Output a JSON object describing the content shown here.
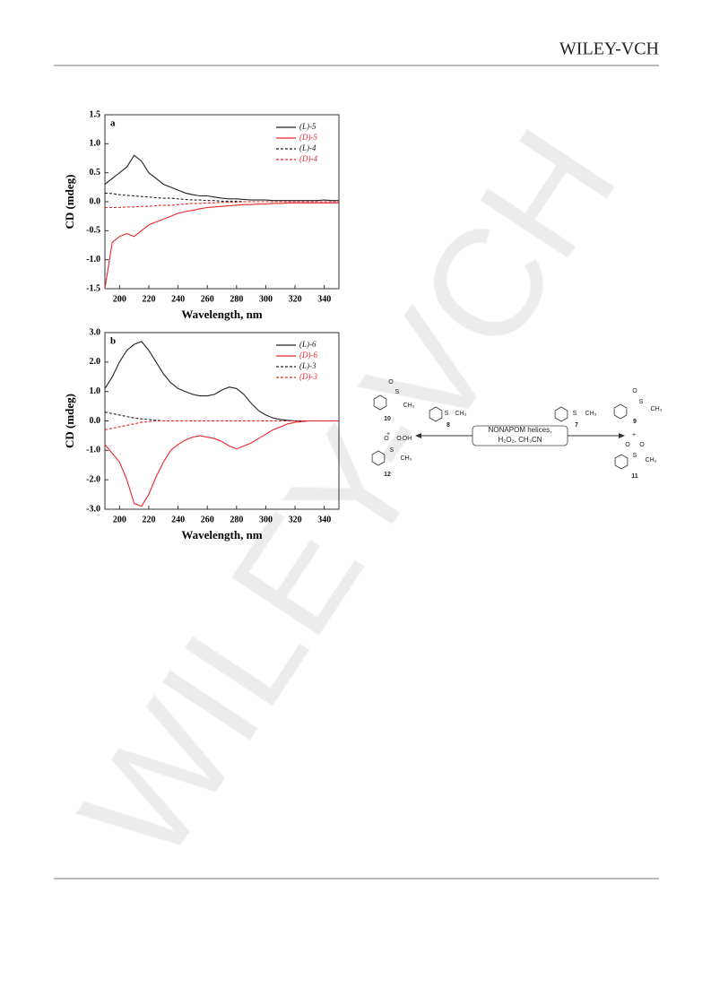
{
  "header": {
    "brand": "WILEY-VCH"
  },
  "watermark": "WILEY-VCH",
  "chart_data": [
    {
      "type": "line",
      "panel_label": "a",
      "xlabel": "Wavelength, nm",
      "ylabel": "CD (mdeg)",
      "x": [
        190,
        195,
        200,
        205,
        210,
        215,
        220,
        225,
        230,
        235,
        240,
        245,
        250,
        255,
        260,
        265,
        270,
        275,
        280,
        285,
        290,
        295,
        300,
        305,
        310,
        315,
        320,
        325,
        330,
        335,
        340,
        345,
        350
      ],
      "xlim": [
        190,
        350
      ],
      "xticks": [
        200,
        220,
        240,
        260,
        280,
        300,
        320,
        340
      ],
      "ylim": [
        -1.5,
        1.5
      ],
      "yticks": [
        -1.5,
        {
          "value": -1,
          "label": "-1.0"
        },
        -0.5,
        {
          "value": 0,
          "label": "0.0"
        },
        0.5,
        {
          "value": 1,
          "label": "1.0"
        },
        1.5
      ],
      "series": [
        {
          "name": "(L)-5",
          "color": "#222222",
          "style": "solid",
          "values": [
            0.3,
            0.4,
            0.5,
            0.6,
            0.8,
            0.7,
            0.5,
            0.4,
            0.3,
            0.25,
            0.2,
            0.15,
            0.12,
            0.1,
            0.1,
            0.08,
            0.06,
            0.05,
            0.05,
            0.04,
            0.03,
            0.03,
            0.03,
            0.02,
            0.02,
            0.02,
            0.02,
            0.02,
            0.02,
            0.02,
            0.03,
            0.02,
            0.02
          ]
        },
        {
          "name": "(D)-5",
          "color": "#e8262a",
          "style": "solid",
          "values": [
            -1.5,
            -0.7,
            -0.6,
            -0.55,
            -0.6,
            -0.5,
            -0.4,
            -0.35,
            -0.3,
            -0.25,
            -0.2,
            -0.17,
            -0.15,
            -0.12,
            -0.1,
            -0.09,
            -0.08,
            -0.07,
            -0.06,
            -0.05,
            -0.05,
            -0.04,
            -0.04,
            -0.03,
            -0.03,
            -0.02,
            -0.02,
            -0.02,
            -0.02,
            -0.02,
            -0.02,
            -0.02,
            -0.02
          ]
        },
        {
          "name": "(L)-4",
          "color": "#222222",
          "style": "dashed",
          "values": [
            0.15,
            0.14,
            0.12,
            0.11,
            0.1,
            0.09,
            0.08,
            0.07,
            0.06,
            0.06,
            0.05,
            0.04,
            0.03,
            0.03,
            0.02,
            0.02,
            0.01,
            0.01,
            0.01,
            0.0,
            0.0,
            0.0,
            0.0,
            0.0,
            0.0,
            0.0,
            0.0,
            0.0,
            0.0,
            0.0,
            0.0,
            0.0,
            0.0
          ]
        },
        {
          "name": "(D)-4",
          "color": "#e8262a",
          "style": "dashed",
          "values": [
            -0.1,
            -0.1,
            -0.1,
            -0.09,
            -0.09,
            -0.08,
            -0.08,
            -0.07,
            -0.06,
            -0.06,
            -0.05,
            -0.04,
            -0.03,
            -0.03,
            -0.02,
            -0.02,
            -0.01,
            -0.01,
            -0.01,
            0.0,
            0.0,
            0.0,
            0.0,
            0.0,
            0.0,
            0.0,
            0.0,
            0.0,
            0.0,
            0.0,
            0.0,
            0.0,
            0.0
          ]
        }
      ]
    },
    {
      "type": "line",
      "panel_label": "b",
      "xlabel": "Wavelength, nm",
      "ylabel": "CD (mdeg)",
      "x": [
        190,
        195,
        200,
        205,
        210,
        215,
        220,
        225,
        230,
        235,
        240,
        245,
        250,
        255,
        260,
        265,
        270,
        275,
        280,
        285,
        290,
        295,
        300,
        305,
        310,
        315,
        320,
        325,
        330,
        335,
        340,
        345,
        350
      ],
      "xlim": [
        190,
        350
      ],
      "xticks": [
        200,
        220,
        240,
        260,
        280,
        300,
        320,
        340
      ],
      "ylim": [
        -3,
        3
      ],
      "yticks": [
        {
          "value": -3,
          "label": "-3.0"
        },
        {
          "value": -2,
          "label": "-2.0"
        },
        {
          "value": -1,
          "label": "-1.0"
        },
        {
          "value": 0,
          "label": "0.0"
        },
        {
          "value": 1,
          "label": "1.0"
        },
        {
          "value": 2,
          "label": "2.0"
        },
        {
          "value": 3,
          "label": "3.0"
        }
      ],
      "series": [
        {
          "name": "(L)-6",
          "color": "#222222",
          "style": "solid",
          "values": [
            1.1,
            1.5,
            2.0,
            2.4,
            2.6,
            2.7,
            2.4,
            2.0,
            1.6,
            1.3,
            1.1,
            1.0,
            0.9,
            0.85,
            0.85,
            0.9,
            1.05,
            1.15,
            1.1,
            0.9,
            0.6,
            0.35,
            0.2,
            0.1,
            0.05,
            0.02,
            0.0,
            0.0,
            0.0,
            0.0,
            0.0,
            0.0,
            0.0
          ]
        },
        {
          "name": "(D)-6",
          "color": "#e8262a",
          "style": "solid",
          "values": [
            -0.8,
            -1.1,
            -1.4,
            -2.0,
            -2.8,
            -2.9,
            -2.5,
            -1.9,
            -1.4,
            -1.0,
            -0.8,
            -0.65,
            -0.55,
            -0.5,
            -0.55,
            -0.6,
            -0.7,
            -0.85,
            -0.95,
            -0.85,
            -0.75,
            -0.6,
            -0.45,
            -0.3,
            -0.2,
            -0.1,
            -0.05,
            -0.02,
            0.0,
            0.0,
            0.0,
            0.0,
            0.0
          ]
        },
        {
          "name": "(L)-3",
          "color": "#222222",
          "style": "dashed",
          "values": [
            0.3,
            0.25,
            0.2,
            0.15,
            0.1,
            0.07,
            0.05,
            0.02,
            0.0,
            0.0,
            0.0,
            0.0,
            0.0,
            0.0,
            0.0,
            0.0,
            0.0,
            0.0,
            0.0,
            0.0,
            0.0,
            0.0,
            0.0,
            0.0,
            0.0,
            0.0,
            0.0,
            0.0,
            0.0,
            0.0,
            0.0,
            0.0,
            0.0
          ]
        },
        {
          "name": "(D)-3",
          "color": "#e8262a",
          "style": "dashed",
          "values": [
            -0.3,
            -0.25,
            -0.2,
            -0.15,
            -0.1,
            -0.05,
            -0.02,
            0.0,
            0.0,
            0.0,
            0.0,
            0.0,
            0.0,
            0.0,
            0.0,
            0.0,
            0.0,
            0.0,
            0.0,
            0.0,
            0.0,
            0.0,
            0.0,
            0.0,
            0.0,
            0.0,
            0.0,
            0.0,
            0.0,
            0.0,
            0.0,
            0.0,
            0.0
          ]
        }
      ]
    }
  ],
  "scheme": {
    "texts": [
      "O",
      "S",
      "CH₃",
      "10",
      "+",
      "O",
      "O",
      "S",
      "OH",
      "CH₃",
      "12",
      "S",
      "CH₃",
      "8",
      "NONAPOM helices,",
      "H₂O₂, CH₃CN",
      "S",
      "CH₃",
      "7",
      "O",
      "S",
      "CH₃",
      "9",
      "+",
      "O",
      "O",
      "S",
      "CH₃",
      "11"
    ]
  }
}
